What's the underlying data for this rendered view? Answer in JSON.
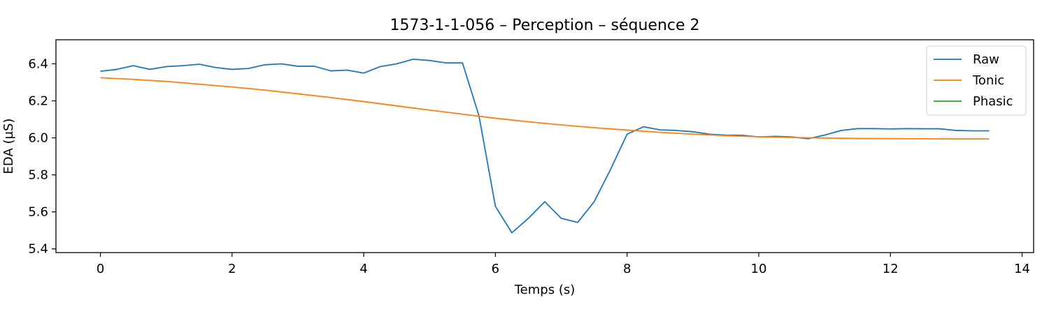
{
  "chart_data": {
    "type": "line",
    "title": "1573-1-1-056 – Perception – séquence 2",
    "xlabel": "Temps (s)",
    "ylabel": "EDA (µS)",
    "xlim": [
      -0.675,
      14.175
    ],
    "ylim": [
      5.38,
      6.53
    ],
    "xticks": [
      0,
      2,
      4,
      6,
      8,
      10,
      12,
      14
    ],
    "yticks": [
      5.4,
      5.6,
      5.8,
      6.0,
      6.2,
      6.4
    ],
    "ytick_labels": [
      "5.4",
      "5.6",
      "5.8",
      "6.0",
      "6.2",
      "6.4"
    ],
    "grid": false,
    "legend_position": "top-right",
    "series": [
      {
        "name": "Raw",
        "color": "#1f77b4",
        "x": [
          0,
          0.25,
          0.5,
          0.75,
          1.0,
          1.25,
          1.5,
          1.75,
          2.0,
          2.25,
          2.5,
          2.75,
          3.0,
          3.25,
          3.5,
          3.75,
          4.0,
          4.25,
          4.5,
          4.75,
          5.0,
          5.25,
          5.5,
          5.75,
          6.0,
          6.25,
          6.5,
          6.75,
          7.0,
          7.25,
          7.5,
          7.75,
          8.0,
          8.25,
          8.5,
          8.75,
          9.0,
          9.25,
          9.5,
          9.75,
          10.0,
          10.25,
          10.5,
          10.75,
          11.0,
          11.25,
          11.5,
          11.75,
          12.0,
          12.25,
          12.5,
          12.75,
          13.0,
          13.25,
          13.5
        ],
        "y": [
          6.36,
          6.37,
          6.39,
          6.37,
          6.385,
          6.39,
          6.398,
          6.38,
          6.37,
          6.375,
          6.395,
          6.4,
          6.387,
          6.387,
          6.362,
          6.366,
          6.35,
          6.385,
          6.4,
          6.425,
          6.418,
          6.405,
          6.405,
          6.12,
          5.63,
          5.487,
          5.565,
          5.655,
          5.565,
          5.543,
          5.655,
          5.83,
          6.02,
          6.06,
          6.043,
          6.04,
          6.033,
          6.02,
          6.015,
          6.014,
          6.005,
          6.008,
          6.005,
          5.995,
          6.015,
          6.04,
          6.05,
          6.05,
          6.048,
          6.05,
          6.049,
          6.049,
          6.04,
          6.038,
          6.038
        ]
      },
      {
        "name": "Tonic",
        "color": "#ff7f0e",
        "x": [
          0,
          0.5,
          1.0,
          1.5,
          2.0,
          2.5,
          3.0,
          3.5,
          4.0,
          4.5,
          5.0,
          5.5,
          6.0,
          6.5,
          7.0,
          7.5,
          8.0,
          8.5,
          9.0,
          9.5,
          10.0,
          10.5,
          11.0,
          11.5,
          12.0,
          12.5,
          13.0,
          13.5
        ],
        "y": [
          6.325,
          6.316,
          6.305,
          6.29,
          6.275,
          6.258,
          6.238,
          6.218,
          6.196,
          6.173,
          6.15,
          6.128,
          6.106,
          6.087,
          6.07,
          6.055,
          6.042,
          6.03,
          6.02,
          6.012,
          6.006,
          6.002,
          5.999,
          5.997,
          5.996,
          5.995,
          5.994,
          5.994
        ]
      },
      {
        "name": "Phasic",
        "color": "#2ca02c",
        "x": [],
        "y": []
      }
    ]
  }
}
